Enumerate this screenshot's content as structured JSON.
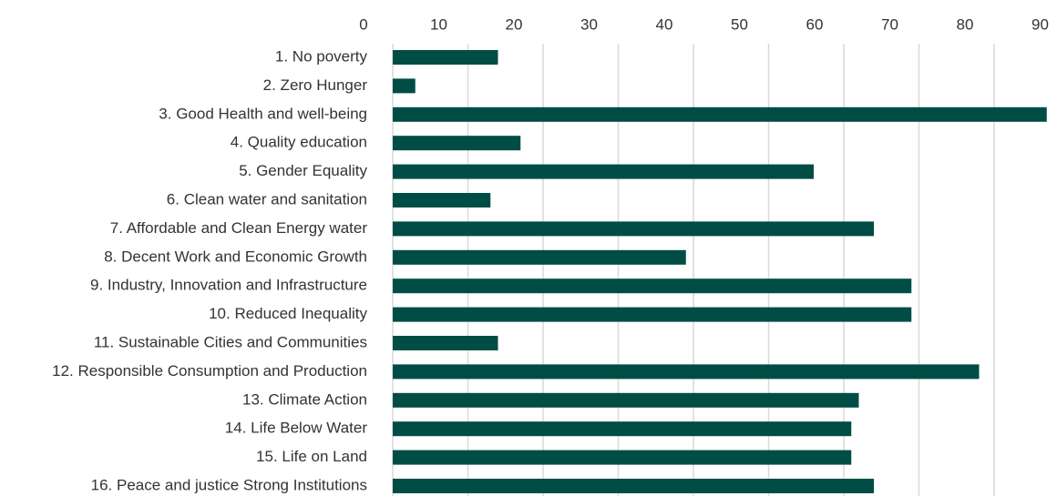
{
  "chart_data": {
    "type": "hbar",
    "categories": [
      "1. No poverty",
      "2. Zero Hunger",
      "3. Good Health and well-being",
      "4. Quality education",
      "5. Gender Equality",
      "6. Clean water and sanitation",
      "7. Affordable and Clean Energy water",
      "8. Decent Work and Economic Growth",
      "9. Industry, Innovation and Infrastructure",
      "10. Reduced Inequality",
      "11. Sustainable Cities and Communities",
      "12. Responsible Consumption and Production",
      "13. Climate Action",
      "14. Life Below Water",
      "15. Life on Land",
      "16. Peace and justice Strong Institutions"
    ],
    "values": [
      14,
      3,
      87,
      17,
      56,
      13,
      64,
      39,
      69,
      69,
      14,
      78,
      62,
      61,
      61,
      64
    ],
    "color": "#004d45",
    "xlim": [
      0,
      90
    ],
    "xticks": [
      0,
      10,
      20,
      30,
      40,
      50,
      60,
      70,
      80,
      90
    ],
    "grid": true
  }
}
